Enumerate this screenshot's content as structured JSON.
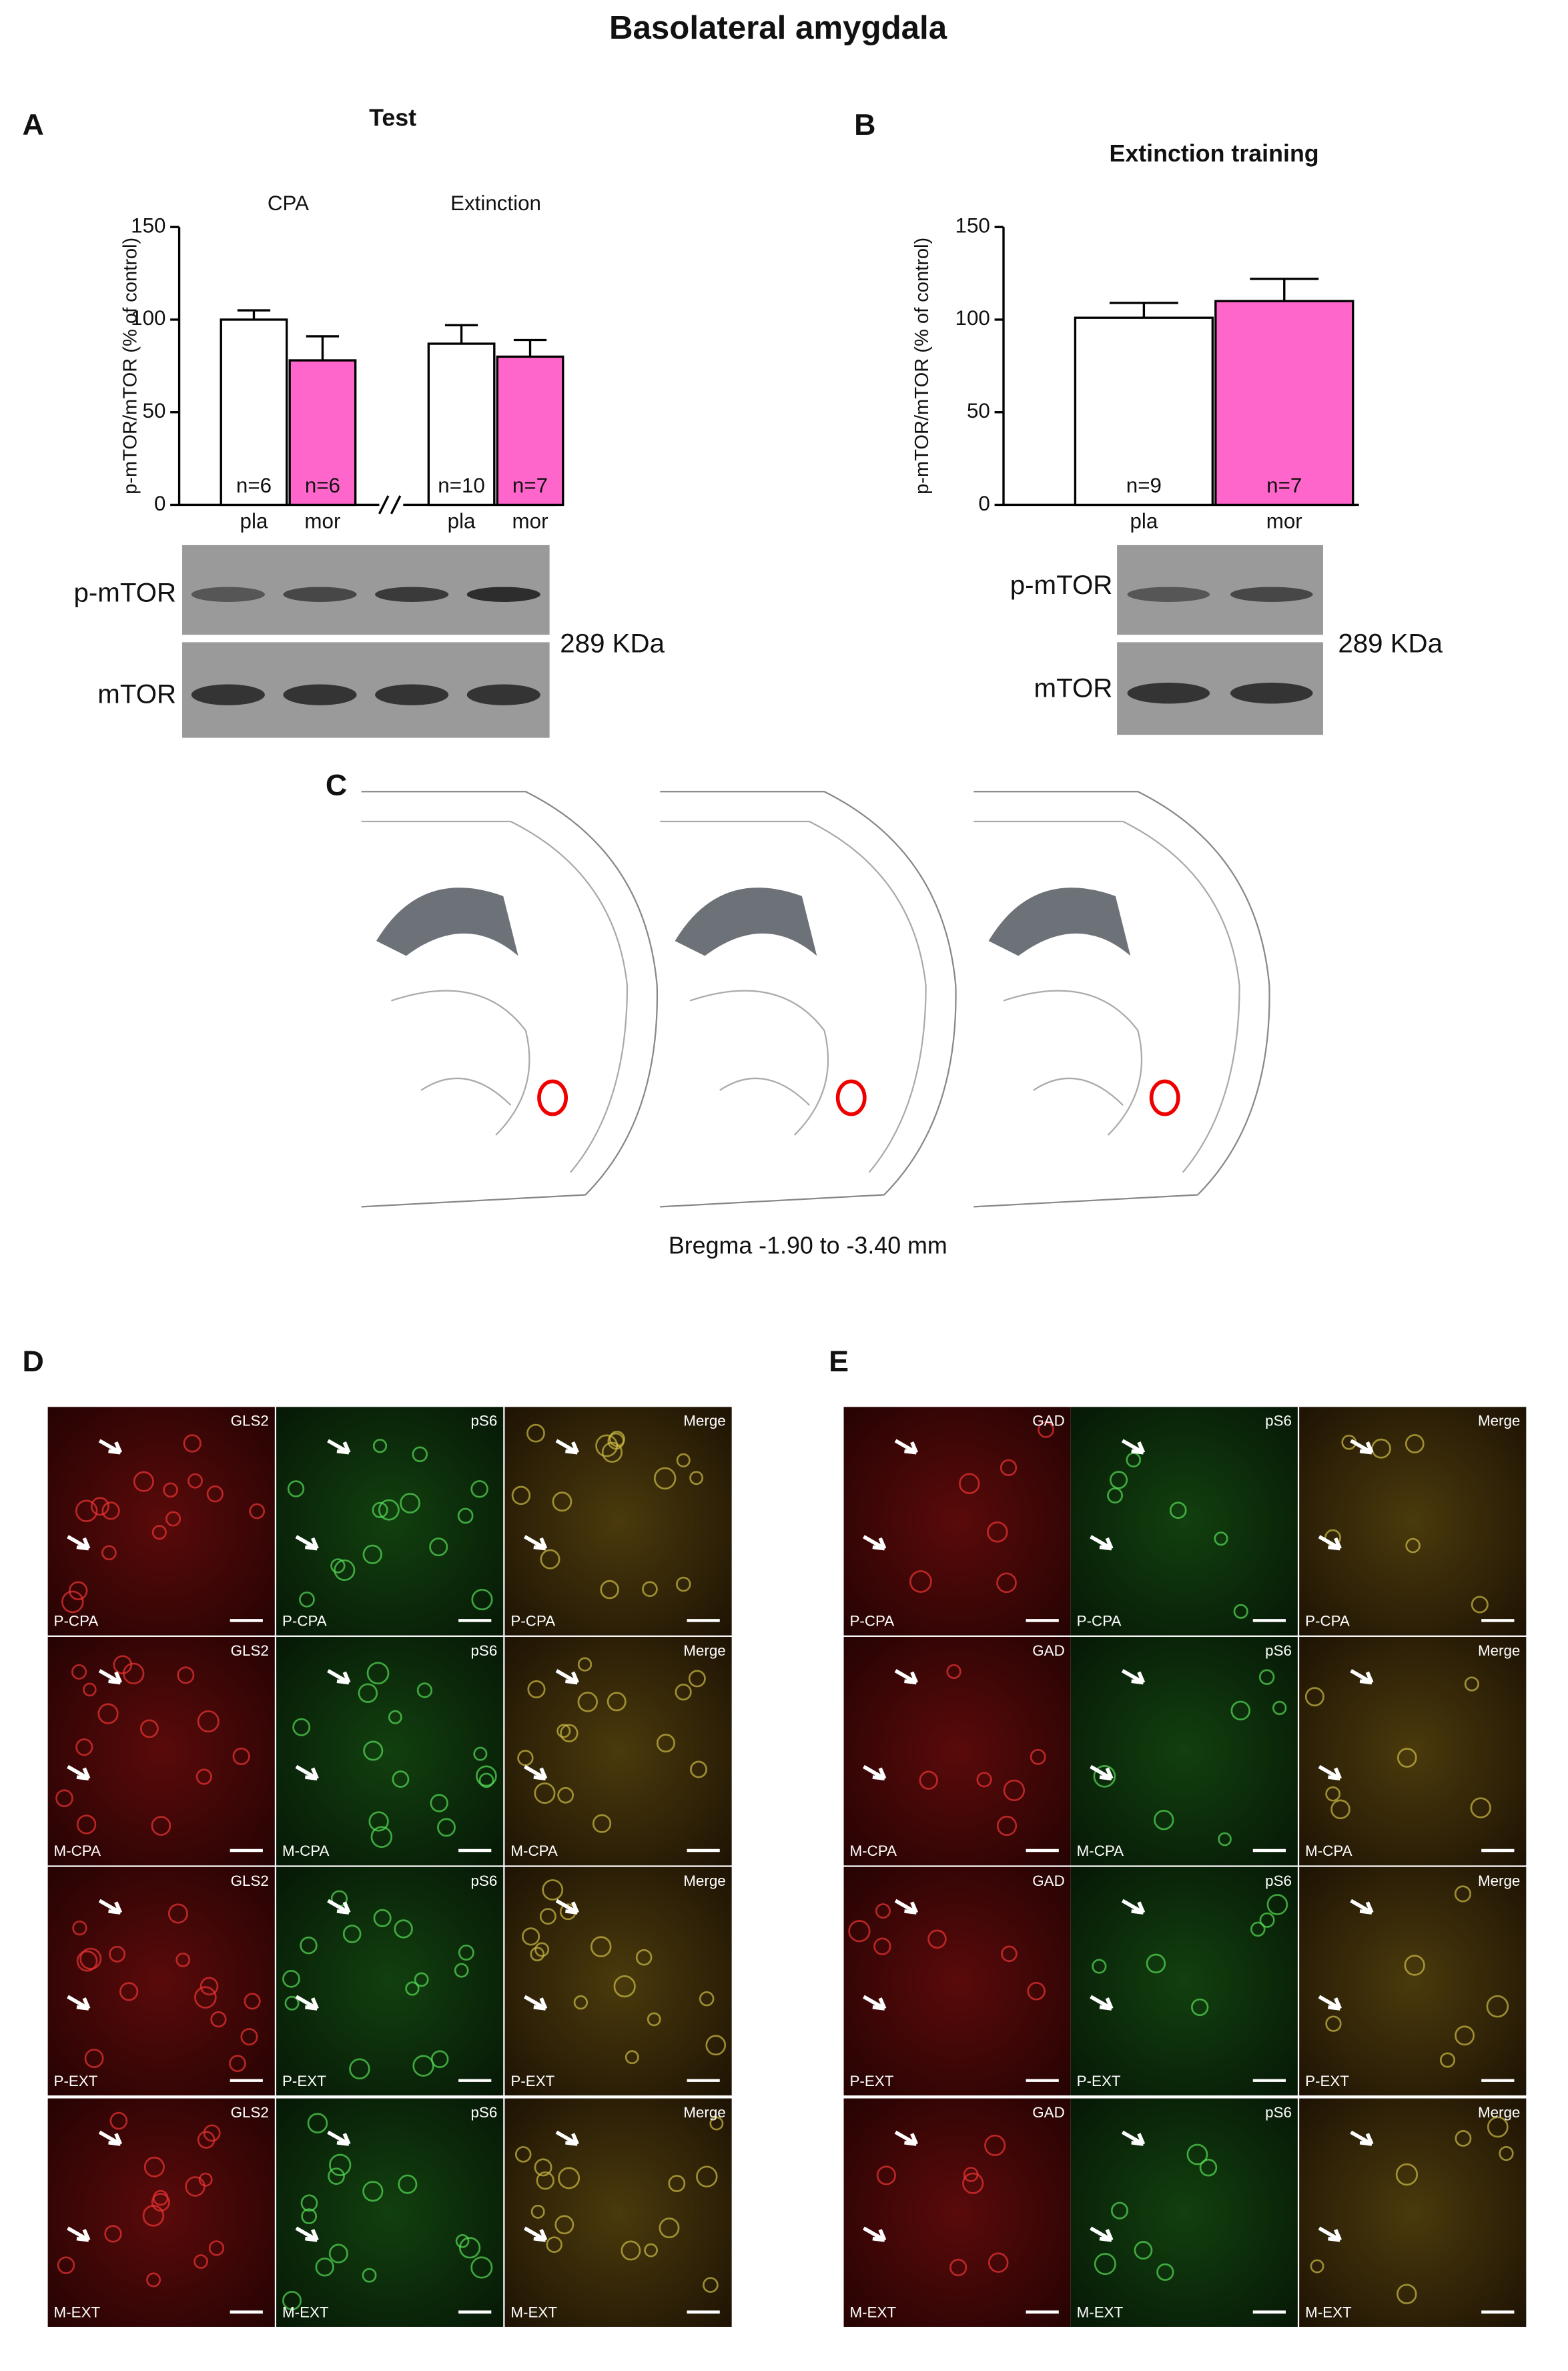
{
  "title": "Basolateral amygdala",
  "chart_data": [
    {
      "type": "bar",
      "panel_label": "A",
      "title": "Test",
      "group_labels": [
        "CPA",
        "Extinction"
      ],
      "ylabel": "p-mTOR/mTOR (% of control)",
      "categories": [
        "pla",
        "mor",
        "pla",
        "mor"
      ],
      "values": [
        100,
        78,
        87,
        80
      ],
      "errors": [
        5,
        13,
        10,
        9
      ],
      "n_labels": [
        "n=6",
        "n=6",
        "n=10",
        "n=7"
      ],
      "colors": [
        "#ffffff",
        "#ff66cc",
        "#ffffff",
        "#ff66cc"
      ],
      "ylim": [
        0,
        150
      ],
      "yticks": [
        0,
        50,
        100,
        150
      ],
      "blot": {
        "rows": [
          "p-mTOR",
          "mTOR"
        ],
        "size": "289 KDa"
      }
    },
    {
      "type": "bar",
      "panel_label": "B",
      "title": "Extinction training",
      "ylabel": "p-mTOR/mTOR (% of control)",
      "categories": [
        "pla",
        "mor"
      ],
      "values": [
        101,
        110
      ],
      "errors": [
        8,
        12
      ],
      "n_labels": [
        "n=9",
        "n=7"
      ],
      "colors": [
        "#ffffff",
        "#ff66cc"
      ],
      "ylim": [
        0,
        150
      ],
      "yticks": [
        0,
        50,
        100,
        150
      ],
      "blot": {
        "rows": [
          "p-mTOR",
          "mTOR"
        ],
        "size": "289 KDa"
      }
    }
  ],
  "atlas": {
    "panel_label": "C",
    "caption": "Bregma -1.90 to -3.40 mm"
  },
  "micrographs": [
    {
      "panel_label": "D",
      "channels": [
        "GLS2",
        "pS6",
        "Merge"
      ],
      "rows": [
        "P-CPA",
        "M-CPA",
        "P-EXT",
        "M-EXT"
      ]
    },
    {
      "panel_label": "E",
      "channels": [
        "GAD",
        "pS6",
        "Merge"
      ],
      "rows": [
        "P-CPA",
        "M-CPA",
        "P-EXT",
        "M-EXT"
      ]
    }
  ]
}
